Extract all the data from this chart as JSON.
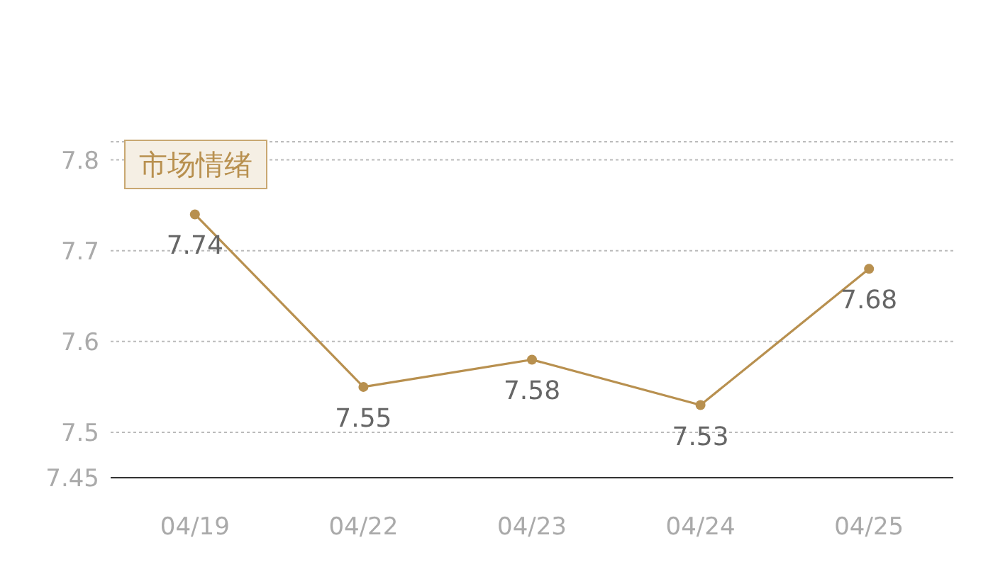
{
  "chart_data": {
    "type": "line",
    "categories": [
      "04/19",
      "04/22",
      "04/23",
      "04/24",
      "04/25"
    ],
    "series": [
      {
        "color": "#b8904f",
        "values": [
          7.74,
          7.55,
          7.58,
          7.53,
          7.68
        ]
      }
    ],
    "ylim": [
      7.45,
      7.82
    ],
    "yticks": [
      7.45,
      7.5,
      7.6,
      7.7,
      7.8
    ],
    "grid": "y",
    "marker": "circle",
    "data_labels": true,
    "annotations": [
      "市场情绪"
    ]
  }
}
